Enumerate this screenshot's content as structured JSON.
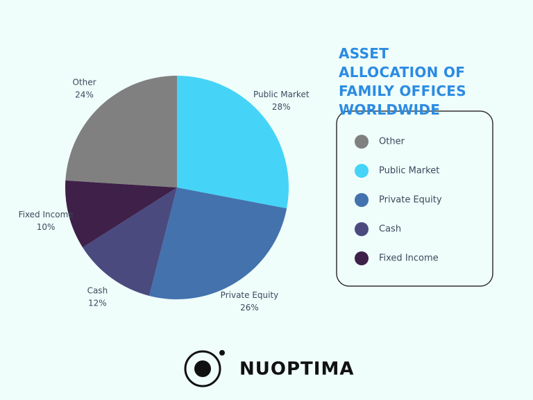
{
  "chart_data": {
    "type": "pie",
    "title": "ASSET ALLOCATION OF FAMILY OFFICES WORLDWIDE",
    "categories": [
      "Other",
      "Public Market",
      "Private Equity",
      "Cash",
      "Fixed Income"
    ],
    "values": [
      24,
      28,
      26,
      12,
      10
    ],
    "value_labels": [
      "24%",
      "28%",
      "26%",
      "12%",
      "10%"
    ],
    "colors": [
      "#808080",
      "#45d4f8",
      "#4372ad",
      "#4a4a7f",
      "#3e2048"
    ],
    "legend": "right"
  },
  "brand": "NUOPTIMA"
}
